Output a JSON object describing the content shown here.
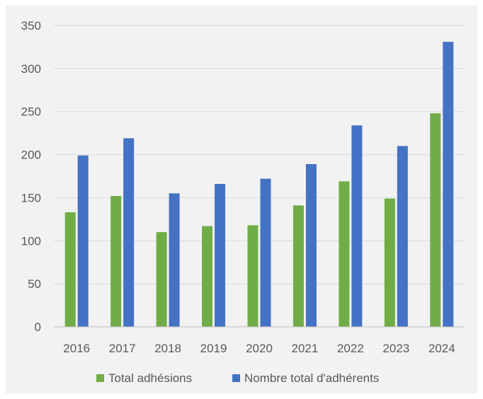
{
  "chart_data": {
    "type": "bar",
    "categories": [
      "2016",
      "2017",
      "2018",
      "2019",
      "2020",
      "2021",
      "2022",
      "2023",
      "2024"
    ],
    "series": [
      {
        "name": "Total adhésions",
        "color": "#70ad47",
        "values": [
          133,
          152,
          110,
          117,
          118,
          141,
          169,
          149,
          248
        ]
      },
      {
        "name": "Nombre total d'adhérents",
        "color": "#4472c4",
        "values": [
          199,
          219,
          155,
          166,
          172,
          189,
          234,
          210,
          331
        ]
      }
    ],
    "ylim": [
      0,
      350
    ],
    "yticks": [
      0,
      50,
      100,
      150,
      200,
      250,
      300,
      350
    ],
    "grid": true,
    "legend_position": "bottom",
    "background": "#f2f2f2",
    "gridline_color": "#d9d9d9",
    "axis_label_color": "#595959"
  }
}
